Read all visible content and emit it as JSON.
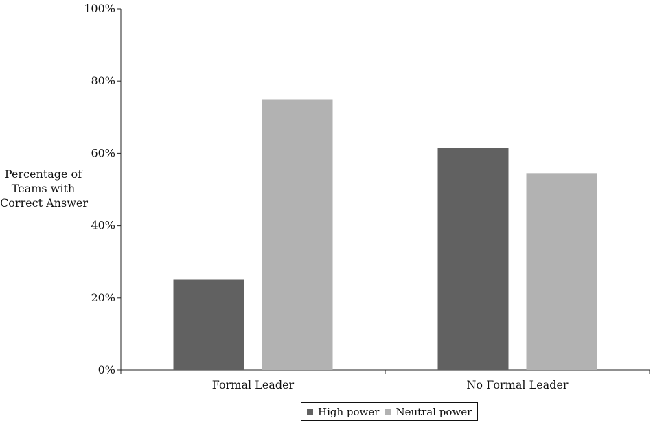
{
  "chart_data": {
    "type": "bar",
    "categories": [
      "Formal Leader",
      "No Formal Leader"
    ],
    "series": [
      {
        "name": "High power",
        "values": [
          25,
          61.5
        ],
        "color": "#616161"
      },
      {
        "name": "Neutral power",
        "values": [
          75,
          54.5
        ],
        "color": "#b2b2b2"
      }
    ],
    "ylabel_lines": [
      "Percentage of",
      "Teams with",
      "Correct Answer"
    ],
    "ylim": [
      0,
      100
    ],
    "yticks": [
      0,
      20,
      40,
      60,
      80,
      100
    ],
    "ytick_labels": [
      "0%",
      "20%",
      "40%",
      "60%",
      "80%",
      "100%"
    ],
    "grid": false,
    "legend_position": "bottom"
  }
}
